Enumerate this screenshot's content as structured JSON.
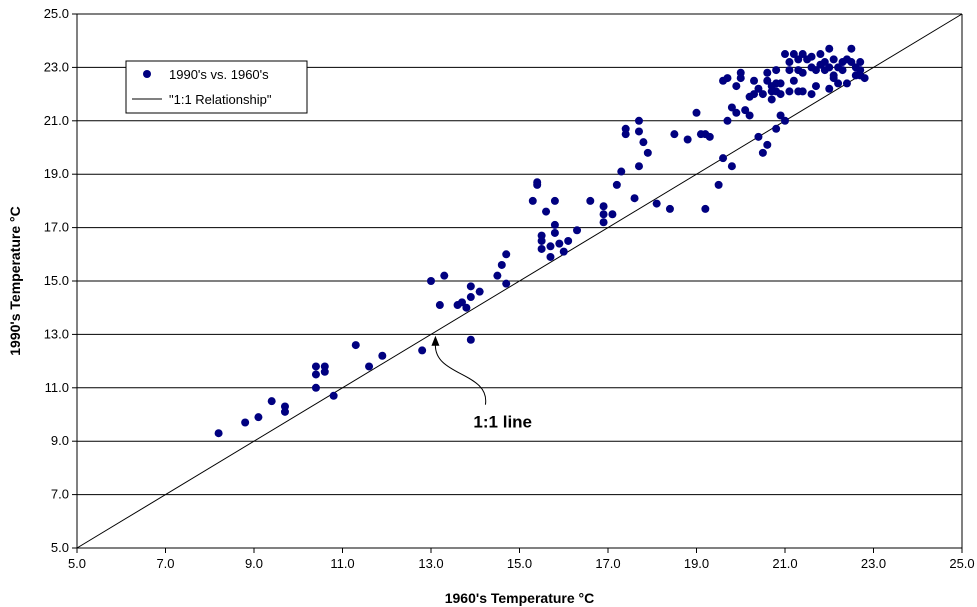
{
  "chart_data": {
    "type": "scatter",
    "xlabel": "1960's Temperature °C",
    "ylabel": "1990's Temperature °C",
    "xlim": [
      5.0,
      25.0
    ],
    "ylim": [
      5.0,
      25.0
    ],
    "x_ticks": [
      "5.0",
      "7.0",
      "9.0",
      "11.0",
      "13.0",
      "15.0",
      "17.0",
      "19.0",
      "21.0",
      "23.0",
      "25.0"
    ],
    "y_ticks": [
      "5.0",
      "7.0",
      "9.0",
      "11.0",
      "13.0",
      "15.0",
      "17.0",
      "19.0",
      "21.0",
      "23.0",
      "25.0"
    ],
    "grid": "horizontal",
    "legend_position": "top-left",
    "marker_color": "#000080",
    "line_color": "#000000",
    "series": [
      {
        "name": "1990's vs. 1960's",
        "type": "scatter",
        "points": [
          [
            8.2,
            9.3
          ],
          [
            8.8,
            9.7
          ],
          [
            9.1,
            9.9
          ],
          [
            9.4,
            10.5
          ],
          [
            9.7,
            10.1
          ],
          [
            9.7,
            10.3
          ],
          [
            10.4,
            11.0
          ],
          [
            10.4,
            11.5
          ],
          [
            10.4,
            11.8
          ],
          [
            10.6,
            11.6
          ],
          [
            10.6,
            11.8
          ],
          [
            10.8,
            10.7
          ],
          [
            11.3,
            12.6
          ],
          [
            11.6,
            11.8
          ],
          [
            11.9,
            12.2
          ],
          [
            12.8,
            12.4
          ],
          [
            13.0,
            15.0
          ],
          [
            13.2,
            14.1
          ],
          [
            13.3,
            15.2
          ],
          [
            13.6,
            14.1
          ],
          [
            13.7,
            14.2
          ],
          [
            13.8,
            14.0
          ],
          [
            13.9,
            14.4
          ],
          [
            13.9,
            14.8
          ],
          [
            13.9,
            12.8
          ],
          [
            14.1,
            14.6
          ],
          [
            14.5,
            15.2
          ],
          [
            14.6,
            15.6
          ],
          [
            14.7,
            16.0
          ],
          [
            14.7,
            14.9
          ],
          [
            15.3,
            18.0
          ],
          [
            15.4,
            18.7
          ],
          [
            15.4,
            18.6
          ],
          [
            15.5,
            16.2
          ],
          [
            15.5,
            16.5
          ],
          [
            15.5,
            16.7
          ],
          [
            15.6,
            17.6
          ],
          [
            15.7,
            15.9
          ],
          [
            15.7,
            16.3
          ],
          [
            15.8,
            16.8
          ],
          [
            15.8,
            17.1
          ],
          [
            15.8,
            18.0
          ],
          [
            15.9,
            16.4
          ],
          [
            16.0,
            16.1
          ],
          [
            16.1,
            16.5
          ],
          [
            16.3,
            16.9
          ],
          [
            16.6,
            18.0
          ],
          [
            16.9,
            17.2
          ],
          [
            16.9,
            17.5
          ],
          [
            16.9,
            17.8
          ],
          [
            17.1,
            17.5
          ],
          [
            17.2,
            18.6
          ],
          [
            17.3,
            19.1
          ],
          [
            17.4,
            20.5
          ],
          [
            17.4,
            20.7
          ],
          [
            17.6,
            18.1
          ],
          [
            17.7,
            20.6
          ],
          [
            17.7,
            21.0
          ],
          [
            17.7,
            19.3
          ],
          [
            17.8,
            20.2
          ],
          [
            17.9,
            19.8
          ],
          [
            18.1,
            17.9
          ],
          [
            18.4,
            17.7
          ],
          [
            18.5,
            20.5
          ],
          [
            18.8,
            20.3
          ],
          [
            19.0,
            21.3
          ],
          [
            19.1,
            20.5
          ],
          [
            19.2,
            20.5
          ],
          [
            19.2,
            17.7
          ],
          [
            19.3,
            20.4
          ],
          [
            19.5,
            18.6
          ],
          [
            19.6,
            19.6
          ],
          [
            19.6,
            22.5
          ],
          [
            19.7,
            21.0
          ],
          [
            19.7,
            22.6
          ],
          [
            19.8,
            19.3
          ],
          [
            19.8,
            21.5
          ],
          [
            19.9,
            21.3
          ],
          [
            19.9,
            22.3
          ],
          [
            20.0,
            22.6
          ],
          [
            20.0,
            22.8
          ],
          [
            20.1,
            21.4
          ],
          [
            20.2,
            21.9
          ],
          [
            20.2,
            21.2
          ],
          [
            20.3,
            22.0
          ],
          [
            20.3,
            22.5
          ],
          [
            20.4,
            20.4
          ],
          [
            20.4,
            22.2
          ],
          [
            20.5,
            19.8
          ],
          [
            20.5,
            22.0
          ],
          [
            20.6,
            20.1
          ],
          [
            20.6,
            22.5
          ],
          [
            20.6,
            22.8
          ],
          [
            20.7,
            21.8
          ],
          [
            20.7,
            22.1
          ],
          [
            20.7,
            22.3
          ],
          [
            20.8,
            20.7
          ],
          [
            20.8,
            22.1
          ],
          [
            20.8,
            22.4
          ],
          [
            20.8,
            22.9
          ],
          [
            20.9,
            22.0
          ],
          [
            20.9,
            21.2
          ],
          [
            21.0,
            23.5
          ],
          [
            21.0,
            21.0
          ],
          [
            21.1,
            22.1
          ],
          [
            21.1,
            22.9
          ],
          [
            21.1,
            23.2
          ],
          [
            21.2,
            22.5
          ],
          [
            21.2,
            23.5
          ],
          [
            21.3,
            23.3
          ],
          [
            21.3,
            22.9
          ],
          [
            21.3,
            22.1
          ],
          [
            21.4,
            22.8
          ],
          [
            21.4,
            23.5
          ],
          [
            21.5,
            23.3
          ],
          [
            21.6,
            22.0
          ],
          [
            21.6,
            23.4
          ],
          [
            21.6,
            23.0
          ],
          [
            21.7,
            22.9
          ],
          [
            21.7,
            22.3
          ],
          [
            21.8,
            23.1
          ],
          [
            21.8,
            23.5
          ],
          [
            21.9,
            22.9
          ],
          [
            21.9,
            23.2
          ],
          [
            22.0,
            23.0
          ],
          [
            22.0,
            22.2
          ],
          [
            22.0,
            23.7
          ],
          [
            22.1,
            22.7
          ],
          [
            22.1,
            23.3
          ],
          [
            22.2,
            22.4
          ],
          [
            22.2,
            23.0
          ],
          [
            22.3,
            22.9
          ],
          [
            22.3,
            23.2
          ],
          [
            22.4,
            22.4
          ],
          [
            22.4,
            23.3
          ],
          [
            22.5,
            23.7
          ],
          [
            22.5,
            23.2
          ],
          [
            22.6,
            22.7
          ],
          [
            22.6,
            23.0
          ],
          [
            22.7,
            22.7
          ],
          [
            22.7,
            23.2
          ],
          [
            22.7,
            22.9
          ],
          [
            22.8,
            22.6
          ],
          [
            22.1,
            22.6
          ],
          [
            21.4,
            22.1
          ],
          [
            20.9,
            22.4
          ]
        ]
      },
      {
        "name": "\"1:1 Relationship\"",
        "type": "line",
        "points": [
          [
            5.0,
            5.0
          ],
          [
            25.0,
            25.0
          ]
        ]
      }
    ],
    "annotations": [
      {
        "text": "1:1 line",
        "points_to": [
          13.1,
          13.1
        ]
      }
    ]
  }
}
